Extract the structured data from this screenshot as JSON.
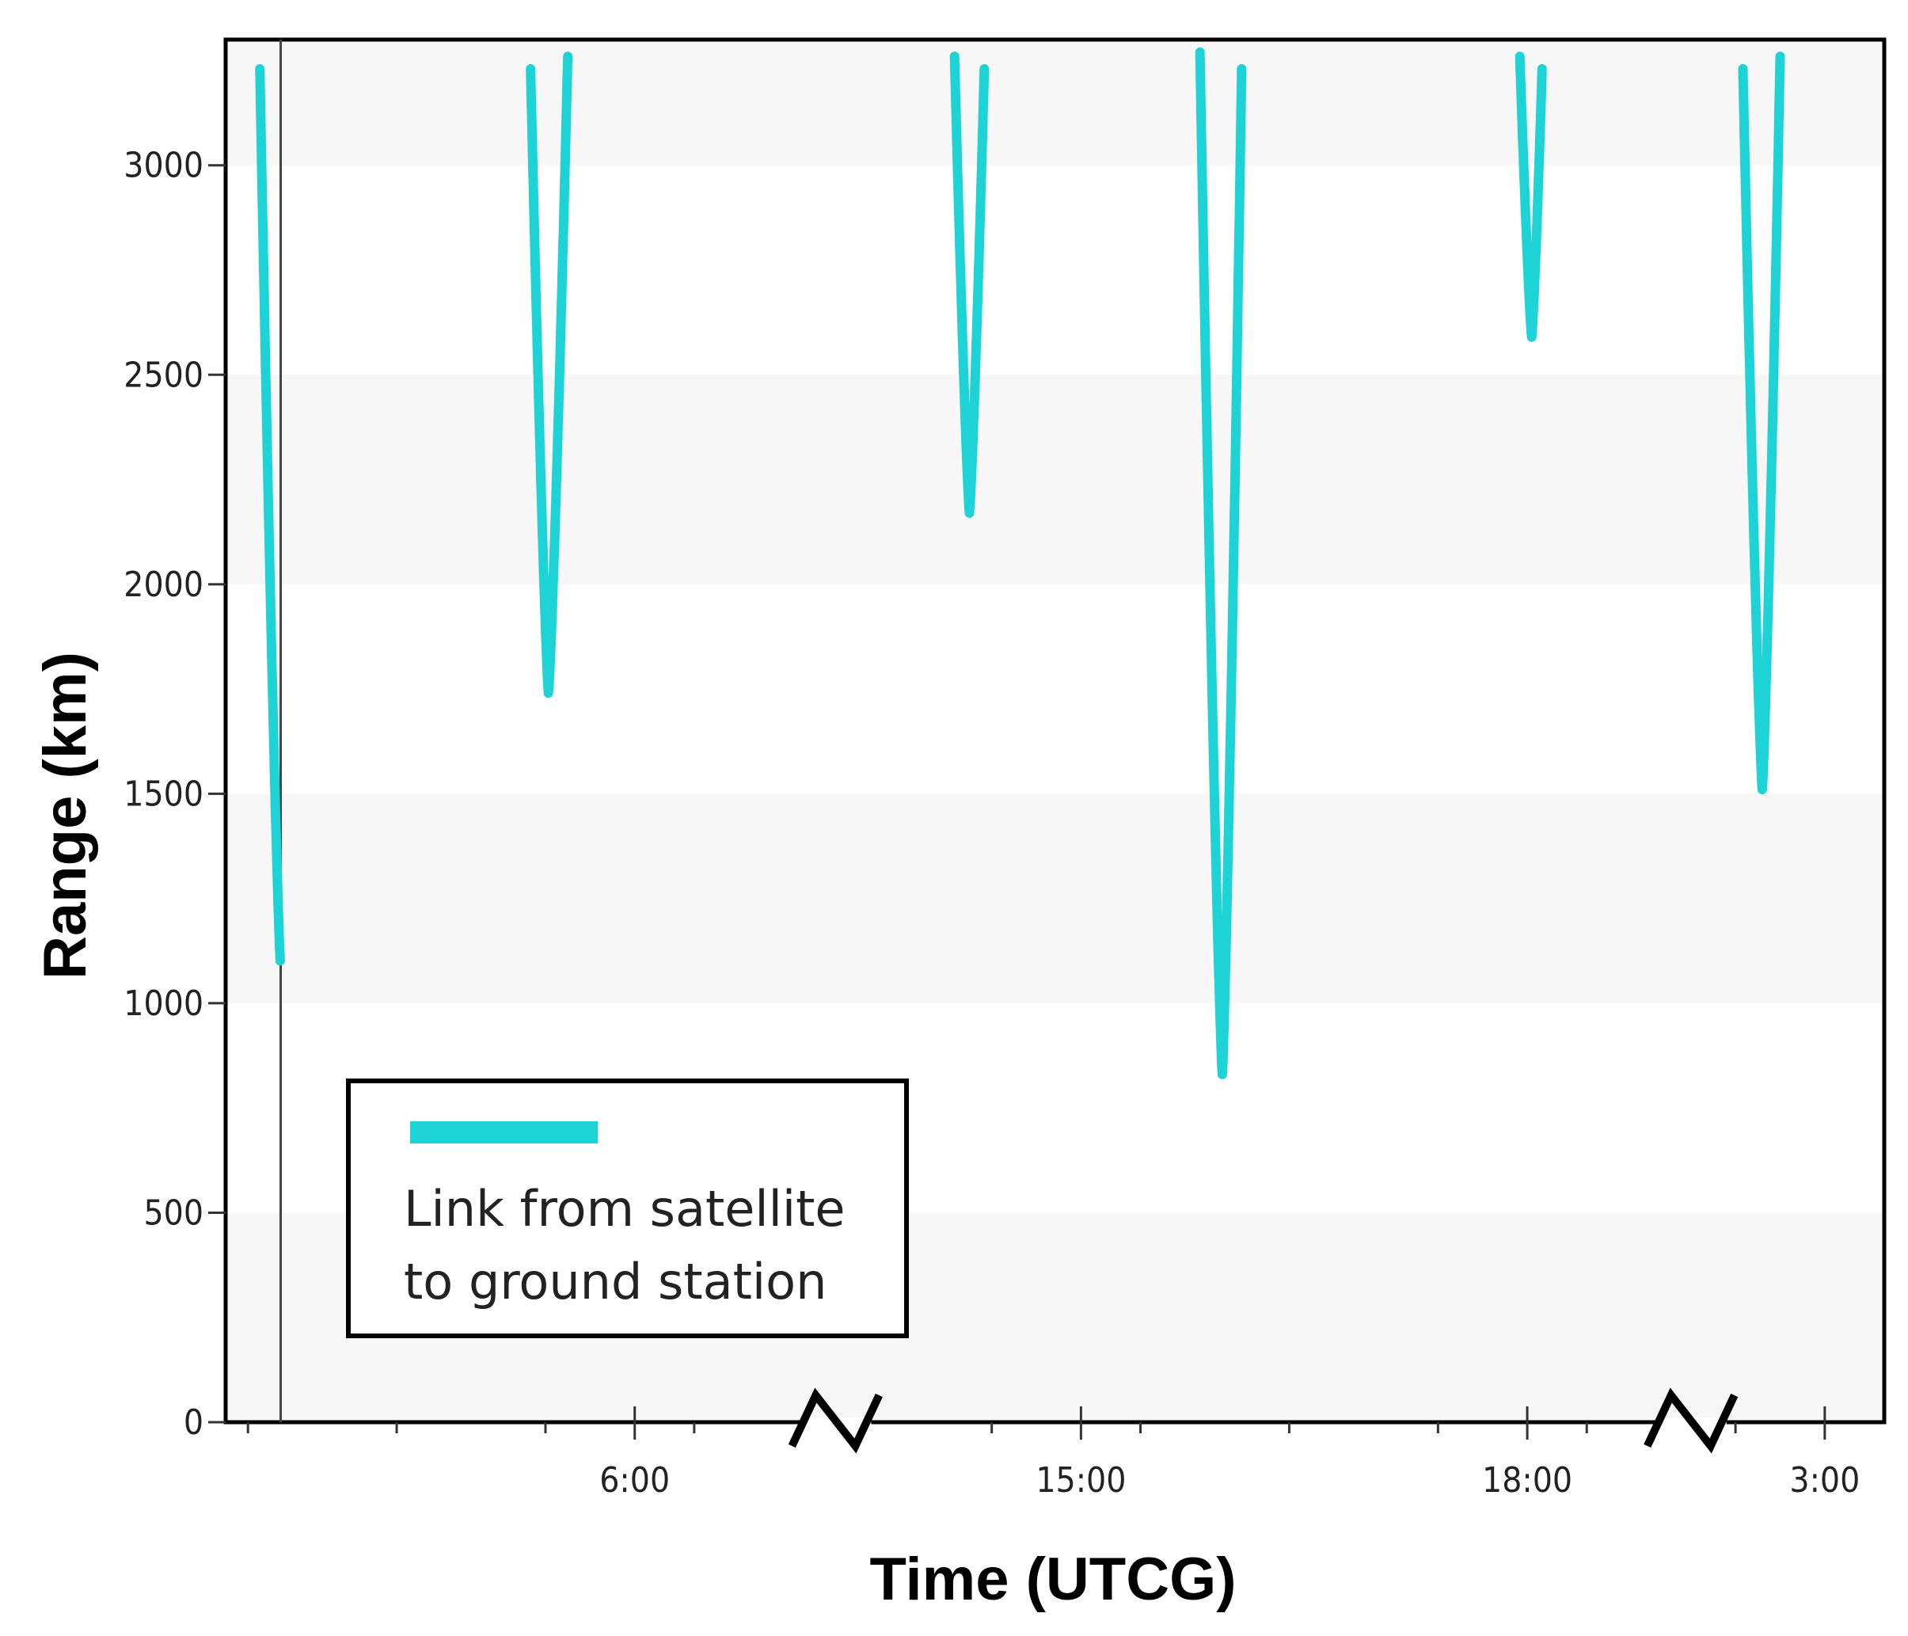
{
  "chart_data": {
    "type": "line",
    "title": "",
    "xlabel": "Time (UTCG)",
    "ylabel": "Range (km)",
    "ylim": [
      0,
      3300
    ],
    "yticks": [
      0,
      500,
      1000,
      1500,
      2000,
      2500,
      3000
    ],
    "xticks": [
      {
        "label": "6:00",
        "x": 2.6
      },
      {
        "label": "15:00",
        "x": 5.6
      },
      {
        "label": "18:00",
        "x": 8.6
      },
      {
        "label": "3:00",
        "x": 10.6
      }
    ],
    "xlim": [
      -0.15,
      11.0
    ],
    "axis_breaks": [
      3.95,
      9.7
    ],
    "grid": "horizontal bands",
    "legend": {
      "position": "bottom-left",
      "label_lines": [
        "Link from satellite",
        "to ground station"
      ]
    },
    "series": [
      {
        "name": "Link from satellite to ground station",
        "color": "#1dd3d6",
        "passes": [
          {
            "start": 0.08,
            "min_t": 0.22,
            "end": 0.33,
            "start_range": 3230,
            "min_range": 1080,
            "end_range": 3260
          },
          {
            "start": 1.9,
            "min_t": 2.02,
            "end": 2.15,
            "start_range": 3230,
            "min_range": 1740,
            "end_range": 3260
          },
          {
            "start": 4.75,
            "min_t": 4.85,
            "end": 4.95,
            "start_range": 3260,
            "min_range": 2170,
            "end_range": 3230
          },
          {
            "start": 6.4,
            "min_t": 6.55,
            "end": 6.68,
            "start_range": 3270,
            "min_range": 830,
            "end_range": 3230
          },
          {
            "start": 8.55,
            "min_t": 8.63,
            "end": 8.7,
            "start_range": 3260,
            "min_range": 2590,
            "end_range": 3230
          },
          {
            "start": 10.05,
            "min_t": 10.18,
            "end": 10.3,
            "start_range": 3230,
            "min_range": 1510,
            "end_range": 3260
          }
        ]
      }
    ],
    "cursor_x": 0.22
  }
}
